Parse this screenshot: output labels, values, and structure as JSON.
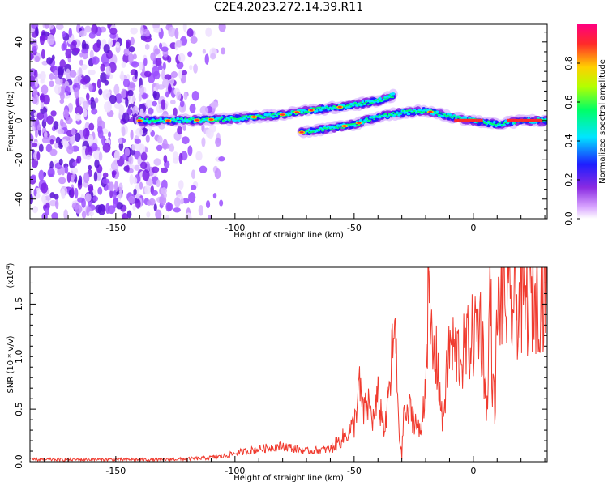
{
  "title": "C2E4.2023.272.14.39.R11",
  "colors": {
    "snr_line": "#f03a2e",
    "spectrogram_strong": "#ff2a2a",
    "spectrogram_weak": "#8a2be2",
    "frame": "#000000"
  },
  "chart_data": [
    {
      "type": "heatmap",
      "name": "spectrogram",
      "xlabel": "Height of straight line (km)",
      "ylabel": "Frequency (Hz)",
      "xlim": [
        -186,
        31
      ],
      "ylim": [
        -50,
        49
      ],
      "x_ticks": [
        -150,
        -100,
        -50,
        0
      ],
      "y_ticks": [
        -40,
        -20,
        0,
        20,
        40
      ],
      "colorbar": {
        "label": "Normalized spectral amplitude",
        "range": [
          0.0,
          1.0
        ],
        "ticks": [
          "0.0",
          "0.2",
          "0.4",
          "0.6",
          "0.8"
        ],
        "colormap": [
          "#ffffff",
          "#d9a6ff",
          "#8a2be2",
          "#1e1eff",
          "#00e5ff",
          "#00ff66",
          "#b4ff00",
          "#ffd000",
          "#ff2a2a",
          "#ff007f"
        ]
      },
      "ridge": {
        "segments": [
          {
            "x": [
              -140,
              -120,
              -100,
              -80,
              -70,
              -55,
              -40,
              -33
            ],
            "y": [
              0,
              0,
              1,
              3,
              5,
              7,
              10,
              13
            ]
          },
          {
            "x": [
              -72,
              -60,
              -50,
              -40,
              -30,
              -20,
              -10,
              0,
              10,
              20,
              31
            ],
            "y": [
              -6,
              -4,
              -2,
              2,
              4,
              5,
              2,
              0,
              -2,
              0,
              0
            ]
          }
        ],
        "noise_region": {
          "x": [
            -186,
            -125
          ],
          "y": [
            -50,
            49
          ]
        }
      }
    },
    {
      "type": "line",
      "name": "snr",
      "xlabel": "Height of straight line (km)",
      "ylabel": "SNR (10 * v/v)",
      "multiplier": "(x10",
      "multiplier_exp": "4",
      "multiplier_close": ")",
      "xlim": [
        -186,
        31
      ],
      "ylim": [
        0,
        1.85
      ],
      "x_ticks": [
        -150,
        -100,
        -50,
        0
      ],
      "y_ticks": [
        "0.0",
        "0.5",
        "1.0",
        "1.5"
      ],
      "y_tick_values": [
        0.0,
        0.5,
        1.0,
        1.5
      ],
      "series": [
        {
          "x": [
            -186,
            -170,
            -150,
            -130,
            -115,
            -105,
            -100,
            -90,
            -80,
            -70,
            -60,
            -55,
            -50,
            -48,
            -46,
            -44,
            -42,
            -40,
            -37,
            -35,
            -33,
            -31,
            -30,
            -29,
            -28,
            -27,
            -25,
            -22,
            -20,
            -19,
            -17,
            -15,
            -13,
            -10,
            -5,
            0,
            3,
            6,
            7,
            8,
            9,
            10,
            12,
            15,
            20,
            25,
            31
          ],
          "y": [
            0.02,
            0.02,
            0.02,
            0.02,
            0.03,
            0.05,
            0.08,
            0.12,
            0.15,
            0.1,
            0.12,
            0.22,
            0.35,
            0.72,
            0.45,
            0.55,
            0.4,
            0.6,
            0.3,
            0.75,
            1.28,
            0.25,
            0.05,
            0.55,
            0.38,
            0.5,
            0.42,
            0.25,
            0.82,
            1.55,
            1.0,
            0.95,
            0.35,
            1.1,
            1.0,
            1.2,
            1.35,
            0.45,
            1.85,
            0.8,
            0.5,
            1.35,
            1.6,
            1.45,
            1.5,
            1.55,
            1.65
          ]
        }
      ]
    }
  ]
}
